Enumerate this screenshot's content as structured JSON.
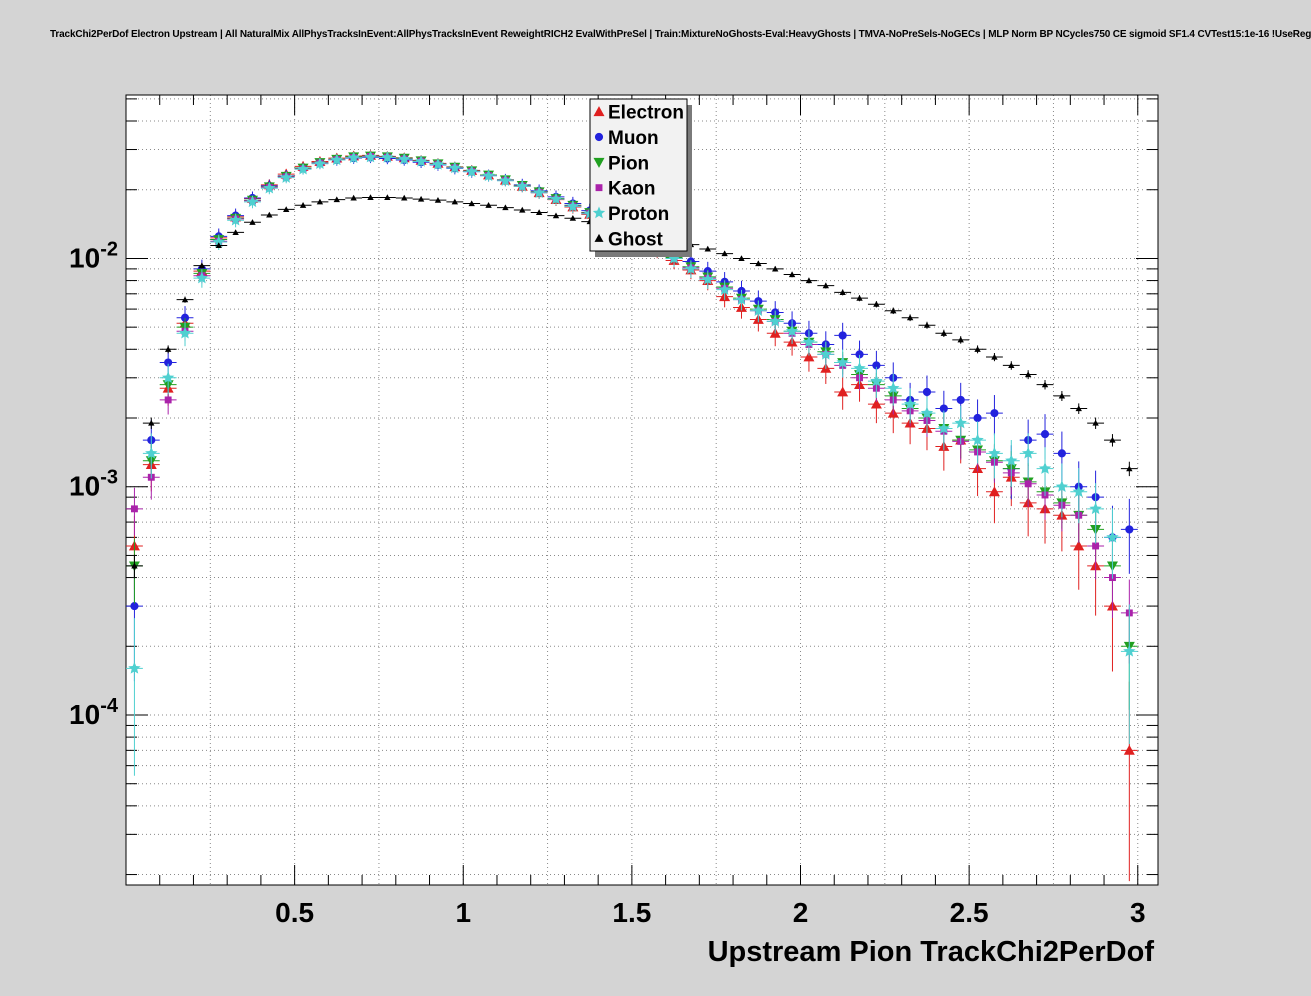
{
  "chart_data": {
    "type": "scatter",
    "title": "TrackChi2PerDof Electron Upstream | All NaturalMix AllPhysTracksInEvent:AllPhysTracksInEvent ReweightRICH2 EvalWithPreSel | Train:MixtureNoGhosts-Eval:HeavyGhosts | TMVA-NoPreSels-NoGECs | MLP Norm BP NCycles750 CE sigmoid SF1.4 CVTest15:1e-16 !UseReg",
    "xlabel": "Upstream Pion TrackChi2PerDof",
    "ylabel": "",
    "xlim": [
      0,
      3.06
    ],
    "ylog": true,
    "ylim": [
      1.8e-05,
      0.052
    ],
    "grid": true,
    "x_ticks": [
      0.5,
      1,
      1.5,
      2,
      2.5,
      3
    ],
    "x_tick_labels": [
      "0.5",
      "1",
      "1.5",
      "2",
      "2.5",
      "3"
    ],
    "y_ticks": [
      {
        "base": "10",
        "exp": "-2",
        "value": 0.01
      },
      {
        "base": "10",
        "exp": "-3",
        "value": 0.001
      },
      {
        "base": "10",
        "exp": "-4",
        "value": 0.0001
      }
    ],
    "legend": {
      "position": "top-center"
    },
    "x": [
      0.025,
      0.075,
      0.125,
      0.175,
      0.225,
      0.275,
      0.325,
      0.375,
      0.425,
      0.475,
      0.525,
      0.575,
      0.625,
      0.675,
      0.725,
      0.775,
      0.825,
      0.875,
      0.925,
      0.975,
      1.025,
      1.075,
      1.125,
      1.175,
      1.225,
      1.275,
      1.325,
      1.375,
      1.425,
      1.475,
      1.525,
      1.575,
      1.625,
      1.675,
      1.725,
      1.775,
      1.825,
      1.875,
      1.925,
      1.975,
      2.025,
      2.075,
      2.125,
      2.175,
      2.225,
      2.275,
      2.325,
      2.375,
      2.425,
      2.475,
      2.525,
      2.575,
      2.625,
      2.675,
      2.725,
      2.775,
      2.825,
      2.875,
      2.925,
      2.975
    ],
    "series": [
      {
        "name": "Electron",
        "color": "#e02020",
        "marker": "triangle-up",
        "err_scale": 0.05,
        "values": [
          0.00055,
          0.00125,
          0.0027,
          0.0052,
          0.0088,
          0.0123,
          0.0152,
          0.0183,
          0.021,
          0.0234,
          0.0253,
          0.0266,
          0.0275,
          0.0281,
          0.0283,
          0.028,
          0.0276,
          0.0269,
          0.0261,
          0.0252,
          0.0243,
          0.0232,
          0.022,
          0.0207,
          0.0194,
          0.0181,
          0.0168,
          0.0156,
          0.0143,
          0.0131,
          0.012,
          0.0109,
          0.0098,
          0.0089,
          0.008,
          0.0068,
          0.0061,
          0.0054,
          0.0047,
          0.0043,
          0.0037,
          0.0033,
          0.0026,
          0.0028,
          0.0023,
          0.0021,
          0.0019,
          0.0018,
          0.0015,
          0.0016,
          0.0012,
          0.00095,
          0.0011,
          0.00085,
          0.0008,
          0.00075,
          0.00055,
          0.00045,
          0.0003,
          7e-05
        ]
      },
      {
        "name": "Muon",
        "color": "#2222dd",
        "marker": "circle",
        "err_scale": 0.055,
        "values": [
          0.0003,
          0.0016,
          0.0035,
          0.0055,
          0.009,
          0.0125,
          0.0154,
          0.0184,
          0.0208,
          0.023,
          0.0248,
          0.0261,
          0.027,
          0.0275,
          0.0277,
          0.0274,
          0.027,
          0.0264,
          0.0257,
          0.0248,
          0.024,
          0.0231,
          0.0221,
          0.021,
          0.0198,
          0.0186,
          0.0174,
          0.0162,
          0.015,
          0.0138,
          0.0127,
          0.0116,
          0.0106,
          0.0097,
          0.0088,
          0.0079,
          0.0072,
          0.0065,
          0.0058,
          0.0052,
          0.0047,
          0.0042,
          0.0046,
          0.0038,
          0.0034,
          0.003,
          0.0024,
          0.0026,
          0.0022,
          0.0024,
          0.002,
          0.0021,
          0.0012,
          0.0016,
          0.0017,
          0.0014,
          0.001,
          0.0009,
          0.0006,
          0.00065
        ]
      },
      {
        "name": "Pion",
        "color": "#20a020",
        "marker": "triangle-down",
        "err_scale": 0.04,
        "values": [
          0.00045,
          0.0013,
          0.0028,
          0.005,
          0.0086,
          0.0121,
          0.015,
          0.018,
          0.0206,
          0.0229,
          0.0249,
          0.0263,
          0.0272,
          0.0279,
          0.0281,
          0.0279,
          0.0275,
          0.0268,
          0.026,
          0.0251,
          0.0242,
          0.0232,
          0.0221,
          0.0209,
          0.0196,
          0.0183,
          0.0171,
          0.0159,
          0.0146,
          0.0134,
          0.0123,
          0.0112,
          0.0101,
          0.0092,
          0.0083,
          0.0075,
          0.0067,
          0.006,
          0.0054,
          0.0048,
          0.0043,
          0.0039,
          0.0035,
          0.0031,
          0.0028,
          0.0025,
          0.0022,
          0.002,
          0.0018,
          0.0016,
          0.00145,
          0.0013,
          0.0012,
          0.00105,
          0.00095,
          0.00085,
          0.00075,
          0.00065,
          0.00045,
          0.0002
        ]
      },
      {
        "name": "Kaon",
        "color": "#aa22aa",
        "marker": "square",
        "err_scale": 0.04,
        "values": [
          0.0008,
          0.0011,
          0.0024,
          0.0048,
          0.0084,
          0.0119,
          0.0149,
          0.0179,
          0.0205,
          0.0228,
          0.0247,
          0.0262,
          0.0271,
          0.0277,
          0.028,
          0.0278,
          0.0273,
          0.0267,
          0.0259,
          0.025,
          0.0241,
          0.0231,
          0.022,
          0.0208,
          0.0195,
          0.0182,
          0.017,
          0.0158,
          0.0145,
          0.0133,
          0.0122,
          0.0111,
          0.01,
          0.0091,
          0.0082,
          0.0074,
          0.0066,
          0.0059,
          0.0053,
          0.0047,
          0.0042,
          0.0038,
          0.0034,
          0.003,
          0.0027,
          0.0024,
          0.00215,
          0.00195,
          0.00175,
          0.00158,
          0.00142,
          0.00128,
          0.00115,
          0.00103,
          0.00092,
          0.00083,
          0.00075,
          0.00055,
          0.0004,
          0.00028
        ]
      },
      {
        "name": "Proton",
        "color": "#4fd0d0",
        "marker": "star",
        "err_scale": 0.05,
        "values": [
          0.00016,
          0.0014,
          0.003,
          0.0047,
          0.0082,
          0.0118,
          0.0147,
          0.0177,
          0.0203,
          0.0226,
          0.0246,
          0.026,
          0.027,
          0.0276,
          0.0278,
          0.0277,
          0.0272,
          0.0266,
          0.0258,
          0.0249,
          0.024,
          0.023,
          0.0219,
          0.0207,
          0.0194,
          0.0182,
          0.0169,
          0.0157,
          0.0144,
          0.0132,
          0.0121,
          0.011,
          0.01,
          0.009,
          0.0081,
          0.0073,
          0.0066,
          0.0059,
          0.0053,
          0.0048,
          0.0043,
          0.0038,
          0.0035,
          0.0033,
          0.0029,
          0.0027,
          0.0023,
          0.0021,
          0.0018,
          0.0019,
          0.0016,
          0.0014,
          0.0013,
          0.0014,
          0.0012,
          0.001,
          0.00095,
          0.0008,
          0.0006,
          0.00019
        ]
      },
      {
        "name": "Ghost",
        "color": "#000000",
        "marker": "small-triangle",
        "err_scale": 0.015,
        "values": [
          0.00045,
          0.0019,
          0.004,
          0.0066,
          0.0093,
          0.0114,
          0.013,
          0.0144,
          0.0155,
          0.0164,
          0.0171,
          0.0177,
          0.0181,
          0.0184,
          0.0185,
          0.0185,
          0.0184,
          0.0182,
          0.018,
          0.0177,
          0.0174,
          0.0171,
          0.0167,
          0.0163,
          0.0159,
          0.0154,
          0.015,
          0.0145,
          0.014,
          0.0135,
          0.013,
          0.0125,
          0.012,
          0.0115,
          0.011,
          0.0105,
          0.01,
          0.0095,
          0.009,
          0.0085,
          0.008,
          0.0076,
          0.0071,
          0.0067,
          0.0063,
          0.0059,
          0.0055,
          0.0051,
          0.0047,
          0.0044,
          0.004,
          0.0037,
          0.0034,
          0.0031,
          0.0028,
          0.0025,
          0.0022,
          0.0019,
          0.0016,
          0.0012
        ]
      }
    ]
  }
}
